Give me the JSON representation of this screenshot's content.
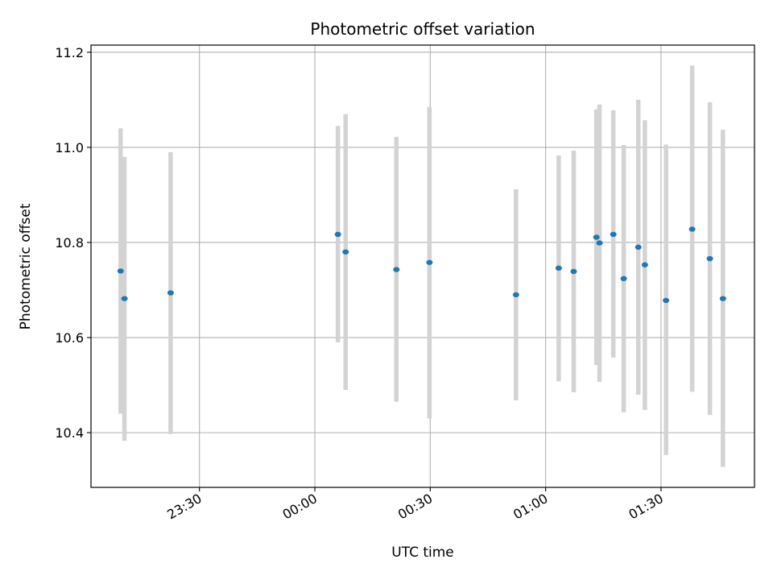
{
  "chart_data": {
    "type": "scatter",
    "title": "Photometric offset variation",
    "xlabel": "UTC time",
    "ylabel": "Photometric offset",
    "grid": true,
    "x_unit": "minutes relative to 00:00 UTC",
    "xlim": [
      -58.2,
      114.3
    ],
    "ylim": [
      10.285,
      11.215
    ],
    "x_ticks": [
      {
        "value": -30,
        "label": "23:30"
      },
      {
        "value": 0,
        "label": "00:00"
      },
      {
        "value": 30,
        "label": "00:30"
      },
      {
        "value": 60,
        "label": "01:00"
      },
      {
        "value": 90,
        "label": "01:30"
      }
    ],
    "y_ticks": [
      {
        "value": 10.4,
        "label": "10.4"
      },
      {
        "value": 10.6,
        "label": "10.6"
      },
      {
        "value": 10.8,
        "label": "10.8"
      },
      {
        "value": 11.0,
        "label": "11.0"
      },
      {
        "value": 11.2,
        "label": "11.2"
      }
    ],
    "series": [
      {
        "name": "offset",
        "marker_color": "#1f77b4",
        "errorbar_color": "#d3d3d3",
        "points": [
          {
            "x": -50.5,
            "y": 10.74,
            "ylow": 10.44,
            "yhigh": 11.04
          },
          {
            "x": -49.5,
            "y": 10.682,
            "ylow": 10.383,
            "yhigh": 10.98
          },
          {
            "x": -37.5,
            "y": 10.694,
            "ylow": 10.397,
            "yhigh": 10.99
          },
          {
            "x": 6.0,
            "y": 10.817,
            "ylow": 10.59,
            "yhigh": 11.045
          },
          {
            "x": 8.0,
            "y": 10.78,
            "ylow": 10.49,
            "yhigh": 11.07
          },
          {
            "x": 21.2,
            "y": 10.743,
            "ylow": 10.465,
            "yhigh": 11.022
          },
          {
            "x": 29.8,
            "y": 10.758,
            "ylow": 10.43,
            "yhigh": 11.085
          },
          {
            "x": 52.3,
            "y": 10.69,
            "ylow": 10.468,
            "yhigh": 10.912
          },
          {
            "x": 63.4,
            "y": 10.746,
            "ylow": 10.508,
            "yhigh": 10.983
          },
          {
            "x": 67.3,
            "y": 10.739,
            "ylow": 10.485,
            "yhigh": 10.993
          },
          {
            "x": 73.2,
            "y": 10.811,
            "ylow": 10.542,
            "yhigh": 11.08
          },
          {
            "x": 74.0,
            "y": 10.799,
            "ylow": 10.507,
            "yhigh": 11.09
          },
          {
            "x": 77.6,
            "y": 10.817,
            "ylow": 10.558,
            "yhigh": 11.078
          },
          {
            "x": 80.3,
            "y": 10.724,
            "ylow": 10.443,
            "yhigh": 11.005
          },
          {
            "x": 84.1,
            "y": 10.79,
            "ylow": 10.48,
            "yhigh": 11.1
          },
          {
            "x": 85.8,
            "y": 10.753,
            "ylow": 10.448,
            "yhigh": 11.057
          },
          {
            "x": 91.3,
            "y": 10.678,
            "ylow": 10.353,
            "yhigh": 11.006
          },
          {
            "x": 98.1,
            "y": 10.828,
            "ylow": 10.486,
            "yhigh": 11.172
          },
          {
            "x": 102.7,
            "y": 10.766,
            "ylow": 10.437,
            "yhigh": 11.095
          },
          {
            "x": 106.1,
            "y": 10.682,
            "ylow": 10.328,
            "yhigh": 11.037
          }
        ]
      }
    ]
  }
}
